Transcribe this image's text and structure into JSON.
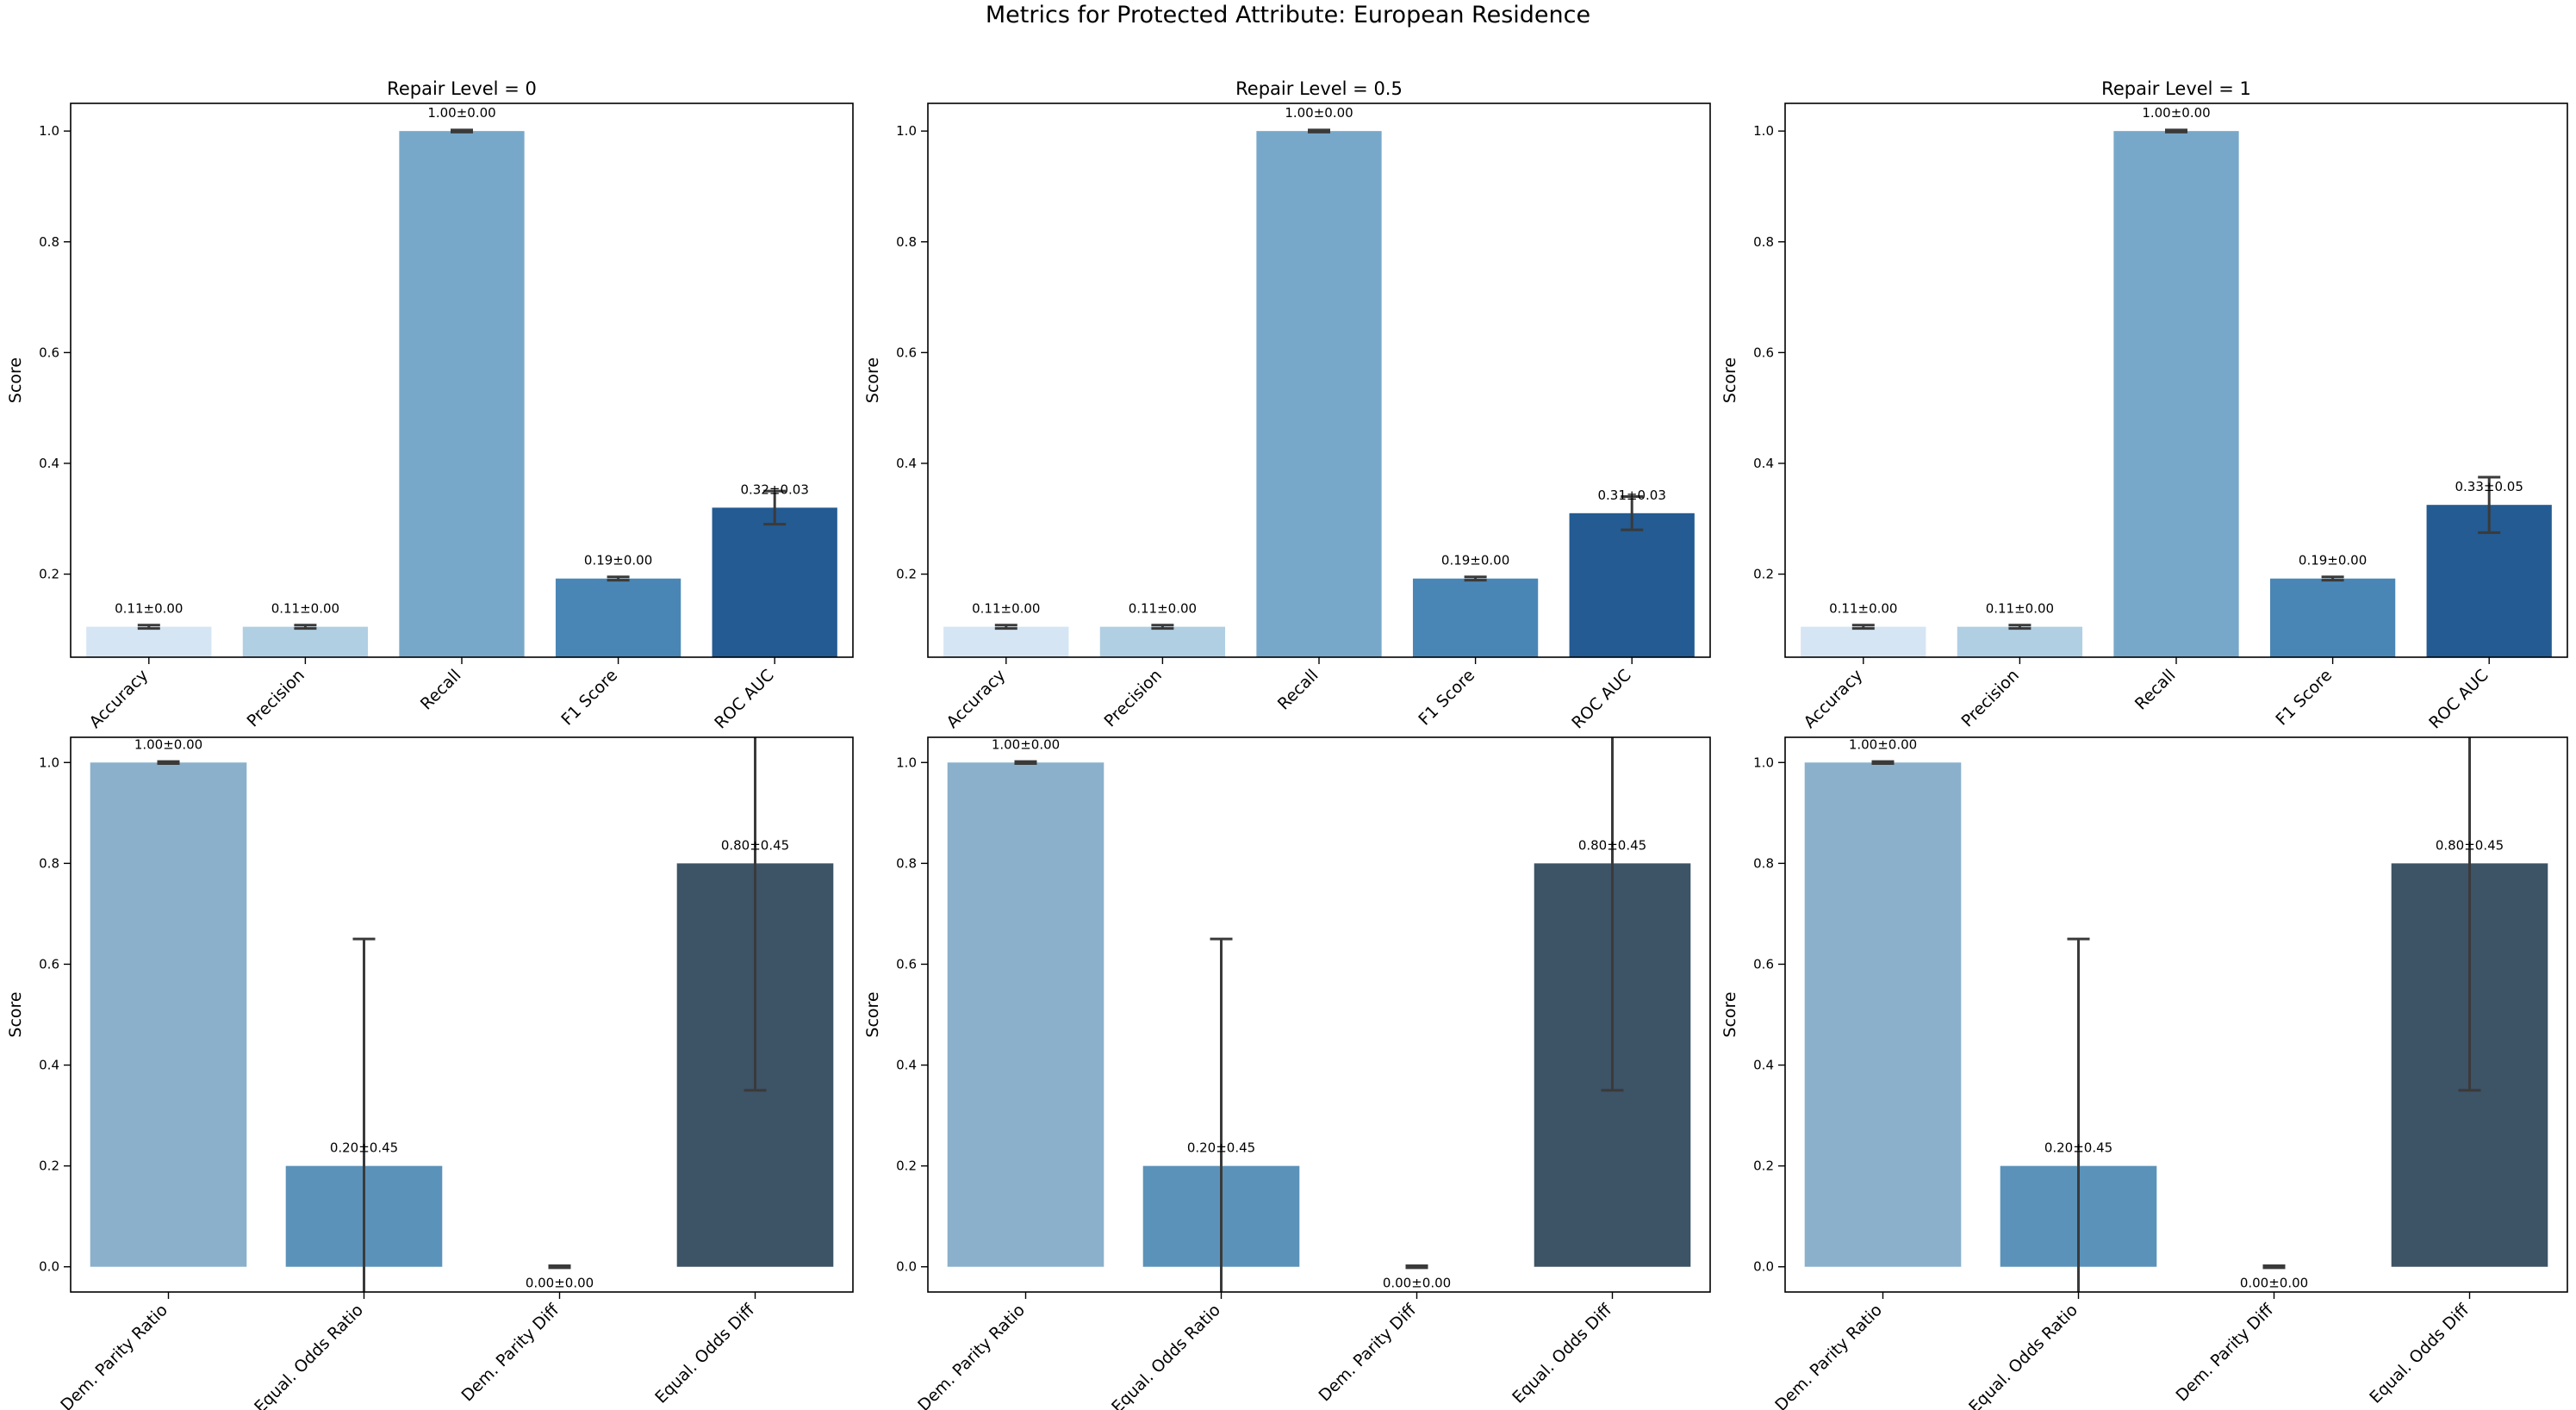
{
  "figure_title": "Metrics for Protected Attribute: European Residence",
  "chart_data": [
    {
      "type": "bar",
      "title": "Repair Level = 0",
      "xlabel": "",
      "ylabel": "Score",
      "ylim": [
        0.05,
        1.05
      ],
      "yticks": [
        "0.2",
        "0.4",
        "0.6",
        "0.8",
        "1.0"
      ],
      "categories": [
        "Accuracy",
        "Precision",
        "Recall",
        "F1 Score",
        "ROC AUC"
      ],
      "values": [
        0.105,
        0.105,
        1.0,
        0.192,
        0.32
      ],
      "errors": [
        0.003,
        0.003,
        0.002,
        0.003,
        0.03
      ],
      "labels": [
        "0.11±0.00",
        "0.11±0.00",
        "1.00±0.00",
        "0.19±0.00",
        "0.32±0.03"
      ],
      "colors": [
        "#d6e5f3",
        "#b1cfe3",
        "#78a8c9",
        "#4a86b5",
        "#235b92"
      ]
    },
    {
      "type": "bar",
      "title": "Repair Level = 0.5",
      "xlabel": "",
      "ylabel": "Score",
      "ylim": [
        0.05,
        1.05
      ],
      "yticks": [
        "0.2",
        "0.4",
        "0.6",
        "0.8",
        "1.0"
      ],
      "categories": [
        "Accuracy",
        "Precision",
        "Recall",
        "F1 Score",
        "ROC AUC"
      ],
      "values": [
        0.105,
        0.105,
        1.0,
        0.192,
        0.31
      ],
      "errors": [
        0.003,
        0.003,
        0.002,
        0.003,
        0.03
      ],
      "labels": [
        "0.11±0.00",
        "0.11±0.00",
        "1.00±0.00",
        "0.19±0.00",
        "0.31±0.03"
      ],
      "colors": [
        "#d6e5f3",
        "#b1cfe3",
        "#78a8c9",
        "#4a86b5",
        "#235b92"
      ]
    },
    {
      "type": "bar",
      "title": "Repair Level = 1",
      "xlabel": "",
      "ylabel": "Score",
      "ylim": [
        0.05,
        1.05
      ],
      "yticks": [
        "0.2",
        "0.4",
        "0.6",
        "0.8",
        "1.0"
      ],
      "categories": [
        "Accuracy",
        "Precision",
        "Recall",
        "F1 Score",
        "ROC AUC"
      ],
      "values": [
        0.105,
        0.105,
        1.0,
        0.192,
        0.325
      ],
      "errors": [
        0.003,
        0.003,
        0.002,
        0.003,
        0.05
      ],
      "labels": [
        "0.11±0.00",
        "0.11±0.00",
        "1.00±0.00",
        "0.19±0.00",
        "0.33±0.05"
      ],
      "colors": [
        "#d6e5f3",
        "#b1cfe3",
        "#78a8c9",
        "#4a86b5",
        "#235b92"
      ]
    },
    {
      "type": "bar",
      "title": "",
      "xlabel": "",
      "ylabel": "Score",
      "ylim": [
        -0.05,
        1.05
      ],
      "yticks": [
        "0.0",
        "0.2",
        "0.4",
        "0.6",
        "0.8",
        "1.0"
      ],
      "categories": [
        "Dem. Parity Ratio",
        "Equal. Odds Ratio",
        "Dem. Parity Diff",
        "Equal. Odds Diff"
      ],
      "values": [
        1.0,
        0.2,
        0.0,
        0.8
      ],
      "errors": [
        0.002,
        0.45,
        0.002,
        0.45
      ],
      "labels": [
        "1.00±0.00",
        "0.20±0.45",
        "0.00±0.00",
        "0.80±0.45"
      ],
      "colors": [
        "#8ab0cb",
        "#5b92b9",
        "#5b92b9",
        "#3d5366"
      ]
    },
    {
      "type": "bar",
      "title": "",
      "xlabel": "",
      "ylabel": "Score",
      "ylim": [
        -0.05,
        1.05
      ],
      "yticks": [
        "0.0",
        "0.2",
        "0.4",
        "0.6",
        "0.8",
        "1.0"
      ],
      "categories": [
        "Dem. Parity Ratio",
        "Equal. Odds Ratio",
        "Dem. Parity Diff",
        "Equal. Odds Diff"
      ],
      "values": [
        1.0,
        0.2,
        0.0,
        0.8
      ],
      "errors": [
        0.002,
        0.45,
        0.002,
        0.45
      ],
      "labels": [
        "1.00±0.00",
        "0.20±0.45",
        "0.00±0.00",
        "0.80±0.45"
      ],
      "colors": [
        "#8ab0cb",
        "#5b92b9",
        "#5b92b9",
        "#3d5366"
      ]
    },
    {
      "type": "bar",
      "title": "",
      "xlabel": "",
      "ylabel": "Score",
      "ylim": [
        -0.05,
        1.05
      ],
      "yticks": [
        "0.0",
        "0.2",
        "0.4",
        "0.6",
        "0.8",
        "1.0"
      ],
      "categories": [
        "Dem. Parity Ratio",
        "Equal. Odds Ratio",
        "Dem. Parity Diff",
        "Equal. Odds Diff"
      ],
      "values": [
        1.0,
        0.2,
        0.0,
        0.8
      ],
      "errors": [
        0.002,
        0.45,
        0.002,
        0.45
      ],
      "labels": [
        "1.00±0.00",
        "0.20±0.45",
        "0.00±0.00",
        "0.80±0.45"
      ],
      "colors": [
        "#8ab0cb",
        "#5b92b9",
        "#5b92b9",
        "#3d5366"
      ]
    }
  ]
}
